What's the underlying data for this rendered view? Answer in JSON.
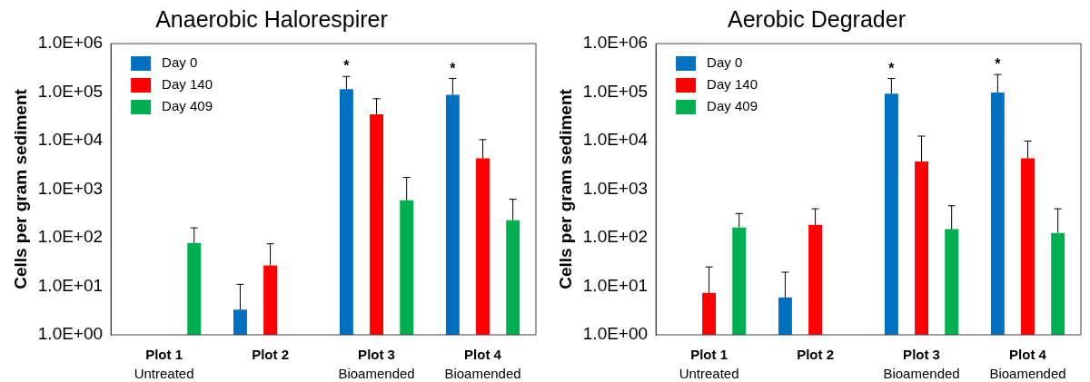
{
  "chart_data": [
    {
      "type": "bar",
      "title": "Anaerobic Halorespirer",
      "ylabel": "Cells per gram sediment",
      "categories": [
        "Plot 1\nUntreated",
        "Plot 2",
        "Plot 3\nBioamended",
        "Plot 4\nBioamended"
      ],
      "series": [
        {
          "name": "Day 0",
          "color": "#0070c0",
          "values": [
            null,
            3.3,
            115000,
            88000
          ],
          "errors": [
            null,
            [
              3.3,
              11
            ],
            [
              115000,
              210000
            ],
            [
              88000,
              190000
            ]
          ]
        },
        {
          "name": "Day 140",
          "color": "#ff0000",
          "values": [
            null,
            27,
            35000,
            4300
          ],
          "errors": [
            null,
            [
              27,
              75
            ],
            [
              35000,
              73000
            ],
            [
              4300,
              10500
            ]
          ]
        },
        {
          "name": "Day 409",
          "color": "#00b050",
          "values": [
            78,
            null,
            590,
            230
          ],
          "errors": [
            [
              78,
              160
            ],
            null,
            [
              590,
              1750
            ],
            [
              230,
              620
            ]
          ]
        }
      ],
      "log": true,
      "ylim": [
        1,
        1000000
      ],
      "yticks": [
        {
          "value": 1,
          "label": "1.0E+00"
        },
        {
          "value": 10,
          "label": "1.0E+01"
        },
        {
          "value": 100,
          "label": "1.0E+02"
        },
        {
          "value": 1000,
          "label": "1.0E+03"
        },
        {
          "value": 10000,
          "label": "1.0E+04"
        },
        {
          "value": 100000,
          "label": "1.0E+05"
        },
        {
          "value": 1000000,
          "label": "1.0E+06"
        }
      ],
      "grid": false,
      "legend": "top left",
      "annotations": [
        "*",
        "*"
      ]
    },
    {
      "type": "bar",
      "title": "Aerobic Degrader",
      "ylabel": "Cells per gram sediment",
      "categories": [
        "Plot 1\nUntreated",
        "Plot 2",
        "Plot 3\nBioamended",
        "Plot 4\nBioamended"
      ],
      "series": [
        {
          "name": "Day 0",
          "color": "#0070c0",
          "values": [
            null,
            5.9,
            93000,
            98000
          ],
          "errors": [
            null,
            [
              5.9,
              19.5
            ],
            [
              93000,
              190000
            ],
            [
              98000,
              230000
            ]
          ]
        },
        {
          "name": "Day 140",
          "color": "#ff0000",
          "values": [
            7.3,
            185,
            3700,
            4300
          ],
          "errors": [
            [
              7.3,
              25
            ],
            [
              185,
              395
            ],
            [
              3700,
              12400
            ],
            [
              4300,
              9800
            ]
          ]
        },
        {
          "name": "Day 409",
          "color": "#00b050",
          "values": [
            163,
            null,
            150,
            126
          ],
          "errors": [
            [
              163,
              315
            ],
            null,
            [
              150,
              455
            ],
            [
              126,
              395
            ]
          ]
        }
      ],
      "log": true,
      "ylim": [
        1,
        1000000
      ],
      "yticks": [
        {
          "value": 1,
          "label": "1.0E+00"
        },
        {
          "value": 10,
          "label": "1.0E+01"
        },
        {
          "value": 100,
          "label": "1.0E+02"
        },
        {
          "value": 1000,
          "label": "1.0E+03"
        },
        {
          "value": 10000,
          "label": "1.0E+04"
        },
        {
          "value": 100000,
          "label": "1.0E+05"
        },
        {
          "value": 1000000,
          "label": "1.0E+06"
        }
      ],
      "grid": false,
      "legend": "top left",
      "annotations": [
        "*",
        "*"
      ]
    }
  ]
}
